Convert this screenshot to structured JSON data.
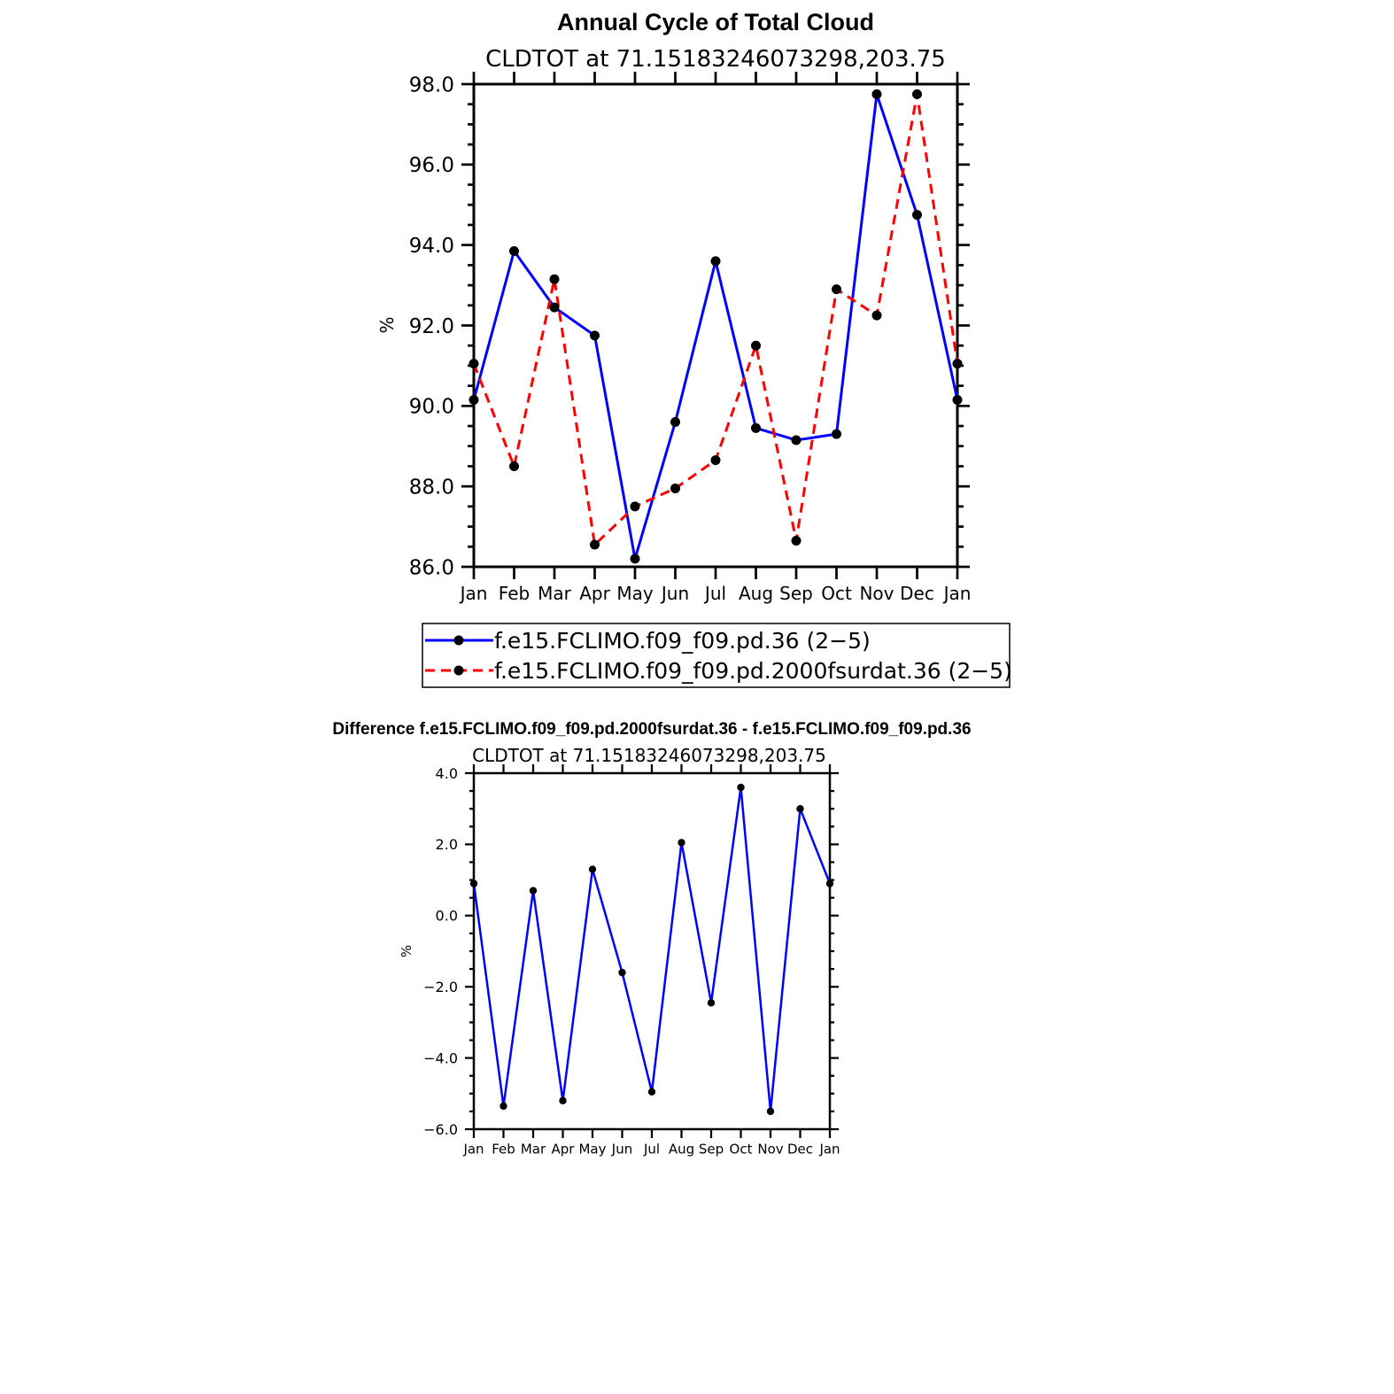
{
  "chart_data": [
    {
      "type": "line",
      "title": "Annual Cycle of Total Cloud",
      "subtitle": "CLDTOT at 71.15183246073298,203.75",
      "ylabel": "%",
      "ylim": [
        86.0,
        98.0
      ],
      "yticks": [
        "86.0",
        "88.0",
        "90.0",
        "92.0",
        "94.0",
        "96.0",
        "98.0"
      ],
      "categories": [
        "Jan",
        "Feb",
        "Mar",
        "Apr",
        "May",
        "Jun",
        "Jul",
        "Aug",
        "Sep",
        "Oct",
        "Nov",
        "Dec",
        "Jan"
      ],
      "legend": "bottom",
      "series": [
        {
          "name": "f.e15.FCLIMO.f09_f09.pd.36 (2−5)",
          "color": "#0000ff",
          "dash": "solid",
          "values": [
            90.15,
            93.85,
            92.45,
            91.75,
            86.2,
            89.6,
            93.6,
            89.45,
            89.15,
            89.3,
            97.75,
            94.75,
            90.15
          ]
        },
        {
          "name": "f.e15.FCLIMO.f09_f09.pd.2000fsurdat.36 (2−5)",
          "color": "#ff0000",
          "dash": "dashed",
          "values": [
            91.05,
            88.5,
            93.15,
            86.55,
            87.5,
            87.95,
            88.65,
            91.5,
            86.65,
            92.9,
            92.25,
            97.75,
            91.05
          ]
        }
      ]
    },
    {
      "type": "line",
      "title": "Difference f.e15.FCLIMO.f09_f09.pd.2000fsurdat.36 - f.e15.FCLIMO.f09_f09.pd.36",
      "subtitle": "CLDTOT at 71.15183246073298,203.75",
      "ylabel": "%",
      "ylim": [
        -6.0,
        4.0
      ],
      "yticks": [
        "−6.0",
        "−4.0",
        "−2.0",
        "0.0",
        "2.0",
        "4.0"
      ],
      "categories": [
        "Jan",
        "Feb",
        "Mar",
        "Apr",
        "May",
        "Jun",
        "Jul",
        "Aug",
        "Sep",
        "Oct",
        "Nov",
        "Dec",
        "Jan"
      ],
      "series": [
        {
          "color": "#0000ff",
          "values": [
            0.9,
            -5.35,
            0.7,
            -5.2,
            1.3,
            -1.6,
            -4.95,
            2.05,
            -2.45,
            3.6,
            -5.5,
            3.0,
            0.9
          ]
        }
      ]
    }
  ]
}
